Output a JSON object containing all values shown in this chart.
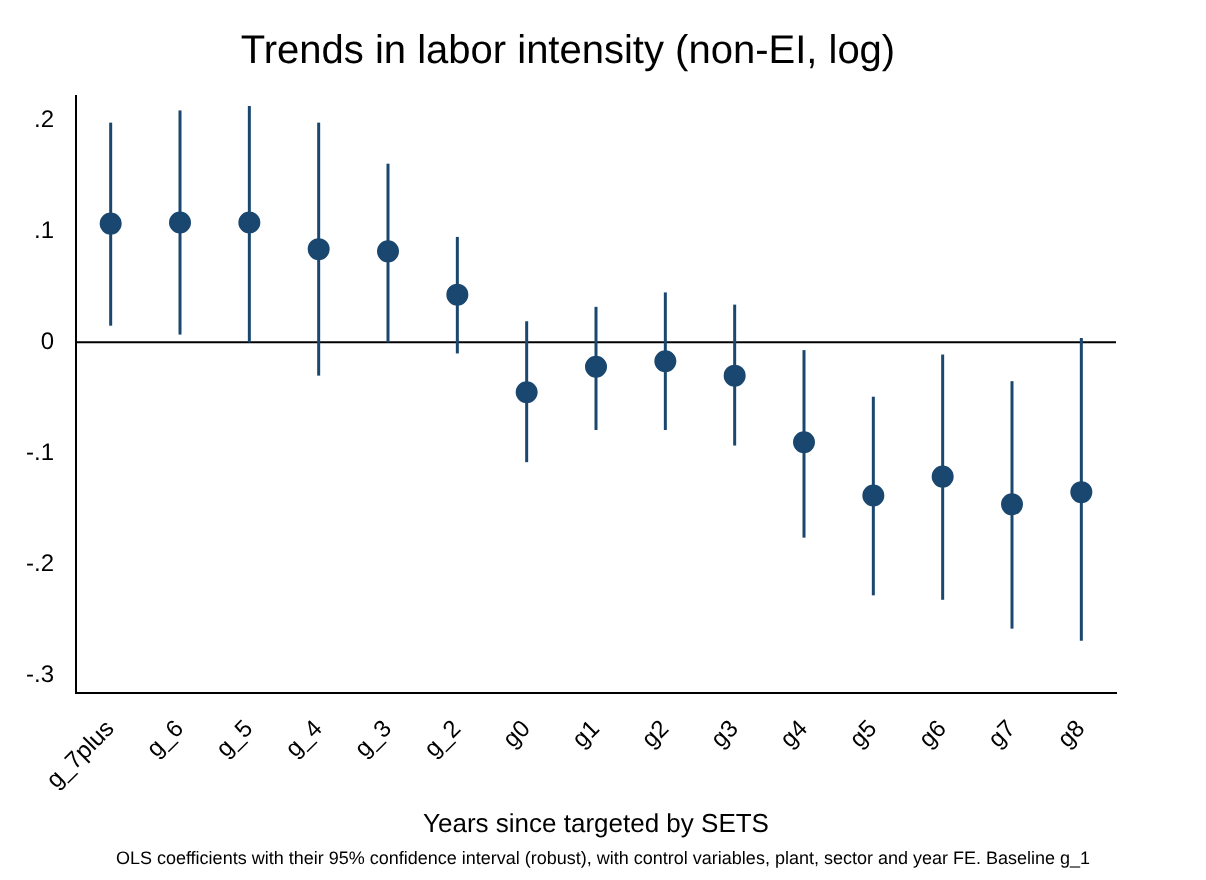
{
  "chart_data": {
    "type": "scatter",
    "title": "Trends in labor intensity (non-EI, log)",
    "xlabel": "Years since targeted by SETS",
    "annotations": [
      "OLS coefficients with their 95% confidence interval (robust), with control variables, plant, sector and year FE. Baseline g_1"
    ],
    "categories": [
      "g_7plus",
      "g_6",
      "g_5",
      "g_4",
      "g_3",
      "g_2",
      "g0",
      "g1",
      "g2",
      "g3",
      "g4",
      "g5",
      "g6",
      "g7",
      "g8"
    ],
    "series": [
      {
        "color": "#1a476f",
        "values": [
          0.107,
          0.108,
          0.108,
          0.084,
          0.082,
          0.043,
          -0.045,
          -0.022,
          -0.017,
          -0.03,
          -0.09,
          -0.138,
          -0.121,
          -0.146,
          -0.135
        ],
        "errors": [
          [
            0.015,
            0.198
          ],
          [
            0.007,
            0.209
          ],
          [
            0,
            0.213
          ],
          [
            -0.03,
            0.198
          ],
          [
            0,
            0.161
          ],
          [
            -0.01,
            0.095
          ],
          [
            -0.108,
            0.019
          ],
          [
            -0.079,
            0.032
          ],
          [
            -0.079,
            0.045
          ],
          [
            -0.093,
            0.034
          ],
          [
            -0.176,
            -0.007
          ],
          [
            -0.228,
            -0.049
          ],
          [
            -0.232,
            -0.011
          ],
          [
            -0.258,
            -0.035
          ],
          [
            -0.269,
            0.004
          ]
        ]
      }
    ],
    "ylim": [
      -0.316,
      0.222
    ],
    "yticks": [
      {
        "value": 0.2,
        "label": ".2"
      },
      {
        "value": 0.1,
        "label": ".1"
      },
      {
        "value": 0,
        "label": "0"
      },
      {
        "value": -0.1,
        "label": "-.1"
      },
      {
        "value": -0.2,
        "label": "-.2"
      },
      {
        "value": -0.3,
        "label": "-.3"
      }
    ],
    "ref_lines": [
      {
        "axis": "y",
        "value": 0,
        "color": "#000000"
      }
    ],
    "grid": false,
    "legend": false,
    "marker": "circle"
  }
}
